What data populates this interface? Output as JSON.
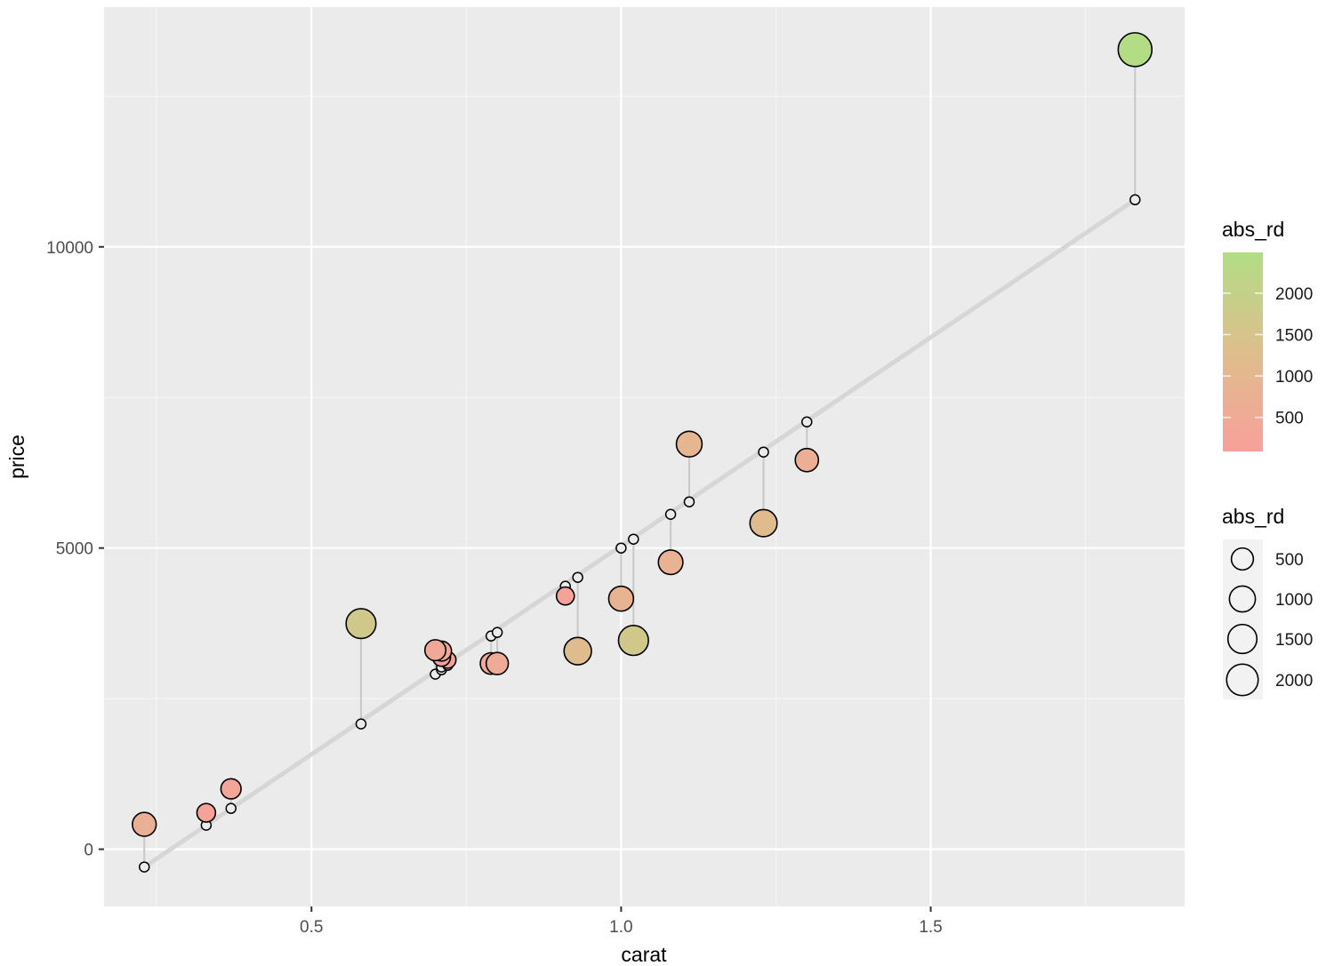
{
  "chart_data": {
    "type": "scatter",
    "title": "",
    "xlabel": "carat",
    "ylabel": "price",
    "xlim": [
      0.165,
      1.91
    ],
    "ylim": [
      -950,
      13980
    ],
    "x_ticks": [
      0.5,
      1.0,
      1.5
    ],
    "x_tick_labels": [
      "0.5",
      "1.0",
      "1.5"
    ],
    "x_minor_ticks": [
      0.25,
      0.75,
      1.25,
      1.75
    ],
    "y_ticks": [
      0,
      5000,
      10000
    ],
    "y_tick_labels": [
      "0",
      "5000",
      "10000"
    ],
    "y_minor_ticks": [
      2500,
      7500,
      12500
    ],
    "grid": true,
    "legend_position": "right",
    "regression_line": {
      "x": [
        0.23,
        1.83
      ],
      "y": [
        -295,
        10782
      ],
      "color": "#d6d6d6"
    },
    "series": [
      {
        "name": "predicted",
        "description": "predicted price on regression line (hollow points)",
        "points": [
          {
            "carat": 0.23,
            "price": -295
          },
          {
            "carat": 0.33,
            "price": 398
          },
          {
            "carat": 0.37,
            "price": 678
          },
          {
            "carat": 0.58,
            "price": 2080
          },
          {
            "carat": 0.7,
            "price": 2906
          },
          {
            "carat": 0.71,
            "price": 2979
          },
          {
            "carat": 0.71,
            "price": 3024
          },
          {
            "carat": 0.72,
            "price": 3053
          },
          {
            "carat": 0.79,
            "price": 3540
          },
          {
            "carat": 0.8,
            "price": 3599
          },
          {
            "carat": 0.91,
            "price": 4366
          },
          {
            "carat": 0.93,
            "price": 4513
          },
          {
            "carat": 1.0,
            "price": 5000
          },
          {
            "carat": 1.02,
            "price": 5147
          },
          {
            "carat": 1.08,
            "price": 5560
          },
          {
            "carat": 1.11,
            "price": 5767
          },
          {
            "carat": 1.23,
            "price": 6593
          },
          {
            "carat": 1.3,
            "price": 7094
          },
          {
            "carat": 1.83,
            "price": 10782
          }
        ]
      },
      {
        "name": "observed",
        "description": "actual price, filled by abs_rd (color + size)",
        "points": [
          {
            "carat": 0.23,
            "price": 413,
            "abs_rd": 708
          },
          {
            "carat": 0.33,
            "price": 605,
            "abs_rd": 207
          },
          {
            "carat": 0.37,
            "price": 1003,
            "abs_rd": 325
          },
          {
            "carat": 0.58,
            "price": 3746,
            "abs_rd": 1666
          },
          {
            "carat": 0.7,
            "price": 3304,
            "abs_rd": 398
          },
          {
            "carat": 0.71,
            "price": 3289,
            "abs_rd": 310
          },
          {
            "carat": 0.71,
            "price": 3186,
            "abs_rd": 162
          },
          {
            "carat": 0.72,
            "price": 3142,
            "abs_rd": 89
          },
          {
            "carat": 0.79,
            "price": 3083,
            "abs_rd": 457
          },
          {
            "carat": 0.8,
            "price": 3083,
            "abs_rd": 516
          },
          {
            "carat": 0.91,
            "price": 4204,
            "abs_rd": 162
          },
          {
            "carat": 0.93,
            "price": 3289,
            "abs_rd": 1224
          },
          {
            "carat": 1.0,
            "price": 4159,
            "abs_rd": 841
          },
          {
            "carat": 1.02,
            "price": 3466,
            "abs_rd": 1681
          },
          {
            "carat": 1.08,
            "price": 4764,
            "abs_rd": 796
          },
          {
            "carat": 1.11,
            "price": 6726,
            "abs_rd": 959
          },
          {
            "carat": 1.23,
            "price": 5413,
            "abs_rd": 1180
          },
          {
            "carat": 1.3,
            "price": 6460,
            "abs_rd": 634
          },
          {
            "carat": 1.83,
            "price": 13274,
            "abs_rd": 2492
          }
        ]
      }
    ],
    "legends": [
      {
        "type": "colorbar",
        "title": "abs_rd",
        "breaks": [
          500,
          1000,
          1500,
          2000
        ],
        "labels": [
          "500",
          "1000",
          "1500",
          "2000"
        ],
        "range": [
          89,
          2492
        ],
        "low_color": "#f8a09a",
        "high_color": "#b2dd85"
      },
      {
        "type": "size",
        "title": "abs_rd",
        "breaks": [
          500,
          1000,
          1500,
          2000
        ],
        "labels": [
          "500",
          "1000",
          "1500",
          "2000"
        ]
      }
    ]
  },
  "colors": {
    "panel_bg": "#ebebeb",
    "grid_major": "#ffffff",
    "segment": "#c8c8c8",
    "regression": "#d6d6d6",
    "point_outline": "#000000"
  }
}
